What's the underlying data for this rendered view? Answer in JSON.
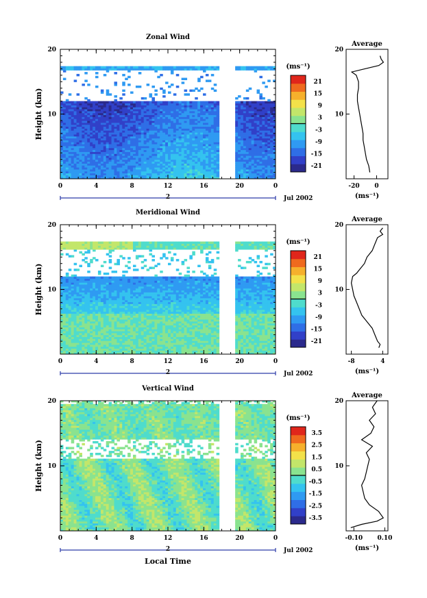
{
  "chart_data": [
    {
      "type": "heatmap",
      "title": "Zonal Wind",
      "ylabel": "Height (km)",
      "xlabel": "",
      "ylim": [
        0,
        20
      ],
      "xlim": [
        0,
        24
      ],
      "x_ticks": [
        "0",
        "4",
        "8",
        "12",
        "16",
        "20",
        "0"
      ],
      "y_ticks": [
        "10",
        "20"
      ],
      "date_label": "Jul 2002",
      "day_marker": "2",
      "colorbar": {
        "unit_label": "(ms⁻¹)",
        "ticks": [
          "21",
          "15",
          "9",
          "3",
          "-3",
          "-9",
          "-15",
          "-21"
        ],
        "range": [
          -24,
          24
        ]
      },
      "data_gap_hours": [
        17.5,
        19.3
      ],
      "profile": {
        "title": "Average",
        "xlabel": "(ms⁻¹)",
        "x_ticks": [
          "-20",
          "0"
        ],
        "xlim": [
          -27,
          10
        ],
        "heights": [
          1,
          2,
          3,
          4,
          5,
          6,
          7,
          8,
          9,
          10,
          11,
          12,
          13,
          14,
          15,
          16,
          16.5,
          17,
          17.5,
          18,
          18.5,
          19
        ],
        "values": [
          -6,
          -7,
          -9,
          -10,
          -11,
          -12,
          -12,
          -13,
          -14,
          -15,
          -16,
          -17,
          -17,
          -16,
          -16,
          -18,
          -22,
          -10,
          2,
          6,
          4,
          3
        ]
      }
    },
    {
      "type": "heatmap",
      "title": "Meridional Wind",
      "ylabel": "Height (km)",
      "xlabel": "",
      "ylim": [
        0,
        20
      ],
      "xlim": [
        0,
        24
      ],
      "x_ticks": [
        "0",
        "4",
        "8",
        "12",
        "16",
        "20",
        "0"
      ],
      "y_ticks": [
        "10",
        "20"
      ],
      "date_label": "Jul 2002",
      "day_marker": "2",
      "colorbar": {
        "unit_label": "(ms⁻¹)",
        "ticks": [
          "21",
          "15",
          "9",
          "3",
          "-3",
          "-9",
          "-15",
          "-21"
        ],
        "range": [
          -24,
          24
        ]
      },
      "data_gap_hours": [
        17.5,
        19.3
      ],
      "profile": {
        "title": "Average",
        "xlabel": "(ms⁻¹)",
        "x_ticks": [
          "-8",
          "4"
        ],
        "xlim": [
          -10,
          6
        ],
        "heights": [
          1,
          1.5,
          2,
          3,
          4,
          5,
          6,
          7,
          8,
          9,
          10,
          11,
          12,
          12.5,
          13,
          14,
          15,
          16,
          17,
          18,
          18.5,
          19,
          19.5
        ],
        "values": [
          2.5,
          3,
          2,
          1,
          0,
          -2,
          -4,
          -5,
          -6,
          -7,
          -7.5,
          -8,
          -7.5,
          -6,
          -5,
          -3,
          -2,
          0,
          1,
          2,
          4,
          3,
          4
        ]
      }
    },
    {
      "type": "heatmap",
      "title": "Vertical Wind",
      "ylabel": "Height (km)",
      "xlabel": "Local Time",
      "ylim": [
        0,
        20
      ],
      "xlim": [
        0,
        24
      ],
      "x_ticks": [
        "0",
        "4",
        "8",
        "12",
        "16",
        "20",
        "0"
      ],
      "y_ticks": [
        "10",
        "20"
      ],
      "date_label": "Jul 2002",
      "day_marker": "2",
      "colorbar": {
        "unit_label": "(ms⁻¹)",
        "ticks": [
          "3.5",
          "2.5",
          "1.5",
          "0.5",
          "-0.5",
          "-1.5",
          "-2.5",
          "-3.5"
        ],
        "range": [
          -4,
          4
        ]
      },
      "data_gap_hours": [
        17.5,
        19.3
      ],
      "profile": {
        "title": "Average",
        "xlabel": "(ms⁻¹)",
        "x_ticks": [
          "-0.10",
          "0.10"
        ],
        "xlim": [
          -0.15,
          0.12
        ],
        "heights": [
          0.5,
          1,
          1.5,
          2,
          3,
          4,
          5,
          6,
          7,
          8,
          9,
          10,
          11,
          12,
          13,
          14,
          15,
          16,
          17,
          18,
          19,
          20
        ],
        "values": [
          -0.12,
          -0.05,
          0.05,
          0.09,
          0.06,
          0.0,
          -0.03,
          -0.04,
          -0.05,
          -0.03,
          -0.02,
          -0.01,
          0.0,
          -0.02,
          0.02,
          -0.05,
          0.01,
          0.03,
          0.0,
          0.04,
          0.02,
          0.05
        ]
      }
    }
  ]
}
